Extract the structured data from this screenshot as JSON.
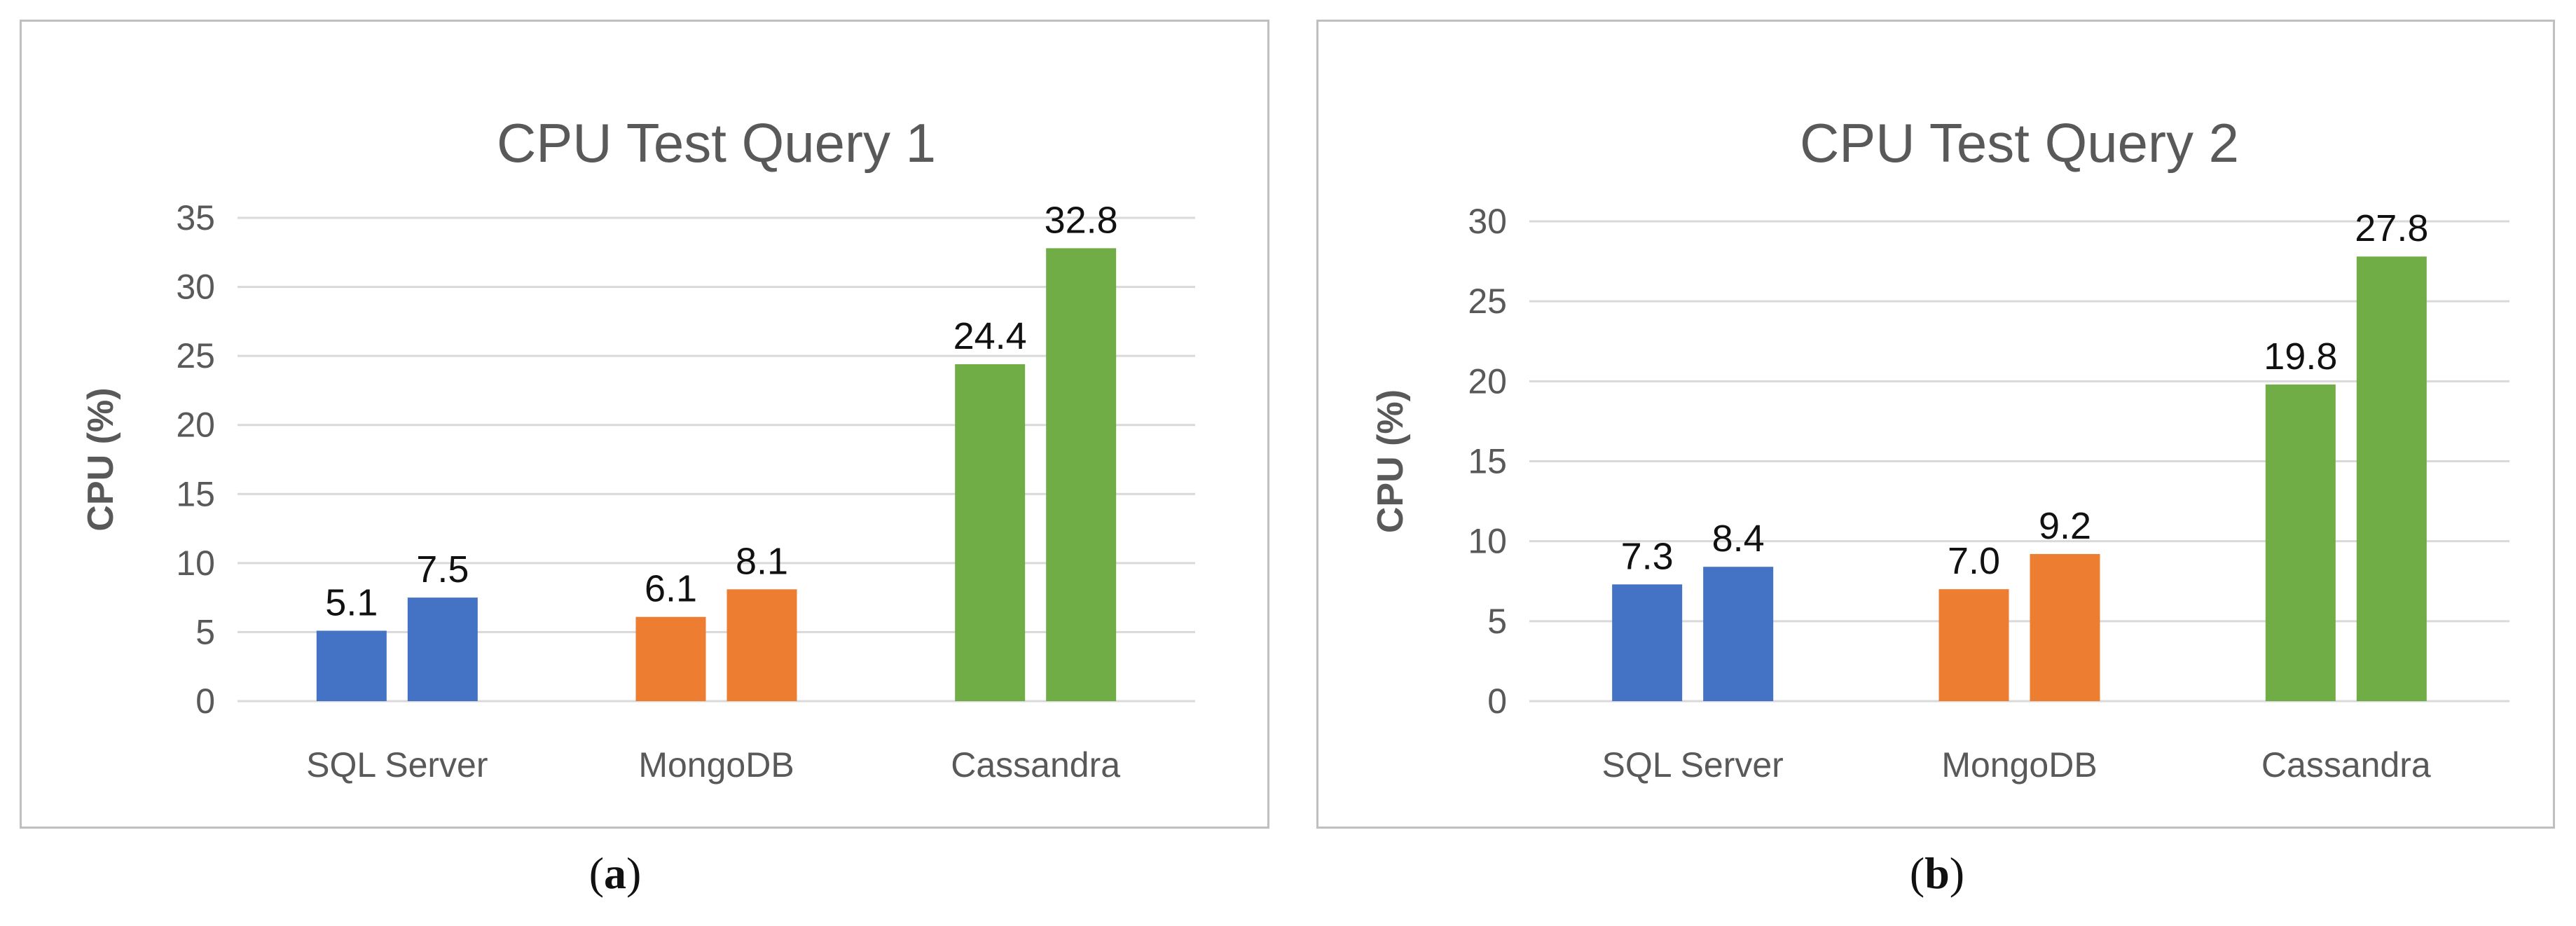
{
  "chart_data": [
    {
      "type": "bar",
      "title": "CPU Test Query 1",
      "ylabel": "CPU (%)",
      "xlabel": "",
      "categories": [
        "SQL Server",
        "MongoDB",
        "Cassandra"
      ],
      "groups": [
        {
          "category": "SQL Server",
          "values": [
            5.1,
            7.5
          ],
          "labels": [
            "5.1",
            "7.5"
          ],
          "color": "#4472c4"
        },
        {
          "category": "MongoDB",
          "values": [
            6.1,
            8.1
          ],
          "labels": [
            "6.1",
            "8.1"
          ],
          "color": "#ed7d31"
        },
        {
          "category": "Cassandra",
          "values": [
            24.4,
            32.8
          ],
          "labels": [
            "24.4",
            "32.8"
          ],
          "color": "#70ad47"
        }
      ],
      "ylim": [
        0,
        35
      ],
      "yticks": [
        0,
        5,
        10,
        15,
        20,
        25,
        30,
        35
      ],
      "grid": true,
      "legend": "none"
    },
    {
      "type": "bar",
      "title": "CPU Test Query 2",
      "ylabel": "CPU (%)",
      "xlabel": "",
      "categories": [
        "SQL Server",
        "MongoDB",
        "Cassandra"
      ],
      "groups": [
        {
          "category": "SQL Server",
          "values": [
            7.3,
            8.4
          ],
          "labels": [
            "7.3",
            "8.4"
          ],
          "color": "#4472c4"
        },
        {
          "category": "MongoDB",
          "values": [
            7.0,
            9.2
          ],
          "labels": [
            "7.0",
            "9.2"
          ],
          "color": "#ed7d31"
        },
        {
          "category": "Cassandra",
          "values": [
            19.8,
            27.8
          ],
          "labels": [
            "19.8",
            "27.8"
          ],
          "color": "#70ad47"
        }
      ],
      "ylim": [
        0,
        30
      ],
      "yticks": [
        0,
        5,
        10,
        15,
        20,
        25,
        30
      ],
      "grid": true,
      "legend": "none"
    }
  ],
  "captions": [
    {
      "open": "(",
      "letter": "a",
      "close": ")"
    },
    {
      "open": "(",
      "letter": "b",
      "close": ")"
    }
  ],
  "colors": {
    "gridline": "#d9d9d9",
    "axis_text": "#595959",
    "title_text": "#595959",
    "value_text": "#111111"
  }
}
